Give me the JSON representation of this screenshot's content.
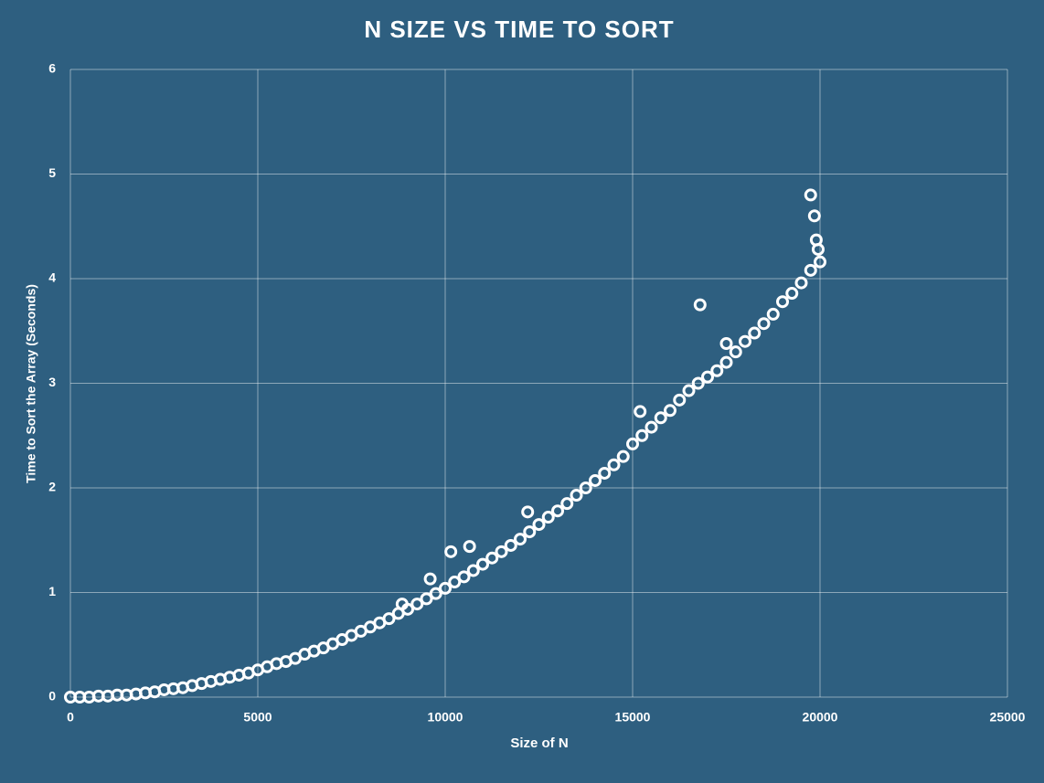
{
  "chart_data": {
    "type": "scatter",
    "title": "N SIZE VS TIME TO SORT",
    "x_label": "Size of N",
    "y_label": "Time to Sort the Array (Seconds)",
    "xlim": [
      0,
      25000
    ],
    "xticks": [
      0,
      5000,
      10000,
      15000,
      20000,
      25000
    ],
    "ylim": [
      0,
      6
    ],
    "yticks": [
      0,
      1,
      2,
      3,
      4,
      5,
      6
    ],
    "grid": true,
    "color": "#ffffff",
    "x": [
      0,
      250,
      500,
      750,
      1000,
      1250,
      1500,
      1750,
      2000,
      2250,
      2500,
      2750,
      3000,
      3250,
      3500,
      3750,
      4000,
      4250,
      4500,
      4750,
      5000,
      5250,
      5500,
      5750,
      6000,
      6250,
      6500,
      6750,
      7000,
      7250,
      7500,
      7750,
      8000,
      8250,
      8500,
      8750,
      9000,
      9250,
      9500,
      9750,
      10000,
      10250,
      10500,
      10750,
      11000,
      11250,
      11500,
      11750,
      12000,
      12250,
      12500,
      12750,
      13000,
      13250,
      13500,
      13750,
      14000,
      14250,
      14500,
      14750,
      15000,
      15250,
      15500,
      15750,
      16000,
      16250,
      16500,
      16750,
      17000,
      17250,
      17500,
      17750,
      18000,
      18250,
      18500,
      18750,
      19000,
      19250,
      19500,
      19750,
      20000,
      16800,
      19750,
      19850,
      19900,
      10150,
      10650,
      12200,
      9600,
      8850,
      15200,
      17500,
      19950
    ],
    "values": [
      0,
      0,
      0,
      0.01,
      0.01,
      0.02,
      0.02,
      0.03,
      0.04,
      0.05,
      0.07,
      0.08,
      0.09,
      0.11,
      0.13,
      0.15,
      0.17,
      0.19,
      0.21,
      0.23,
      0.26,
      0.29,
      0.32,
      0.34,
      0.37,
      0.41,
      0.44,
      0.47,
      0.51,
      0.55,
      0.59,
      0.63,
      0.67,
      0.71,
      0.75,
      0.8,
      0.84,
      0.89,
      0.94,
      0.99,
      1.04,
      1.1,
      1.15,
      1.21,
      1.27,
      1.33,
      1.39,
      1.45,
      1.51,
      1.58,
      1.65,
      1.72,
      1.78,
      1.85,
      1.93,
      2.0,
      2.07,
      2.14,
      2.22,
      2.3,
      2.42,
      2.5,
      2.58,
      2.67,
      2.74,
      2.84,
      2.93,
      3.0,
      3.06,
      3.12,
      3.2,
      3.3,
      3.4,
      3.48,
      3.57,
      3.66,
      3.78,
      3.86,
      3.96,
      4.08,
      4.16,
      3.75,
      4.8,
      4.6,
      4.37,
      1.39,
      1.44,
      1.77,
      1.13,
      0.89,
      2.73,
      3.38,
      4.28
    ]
  }
}
